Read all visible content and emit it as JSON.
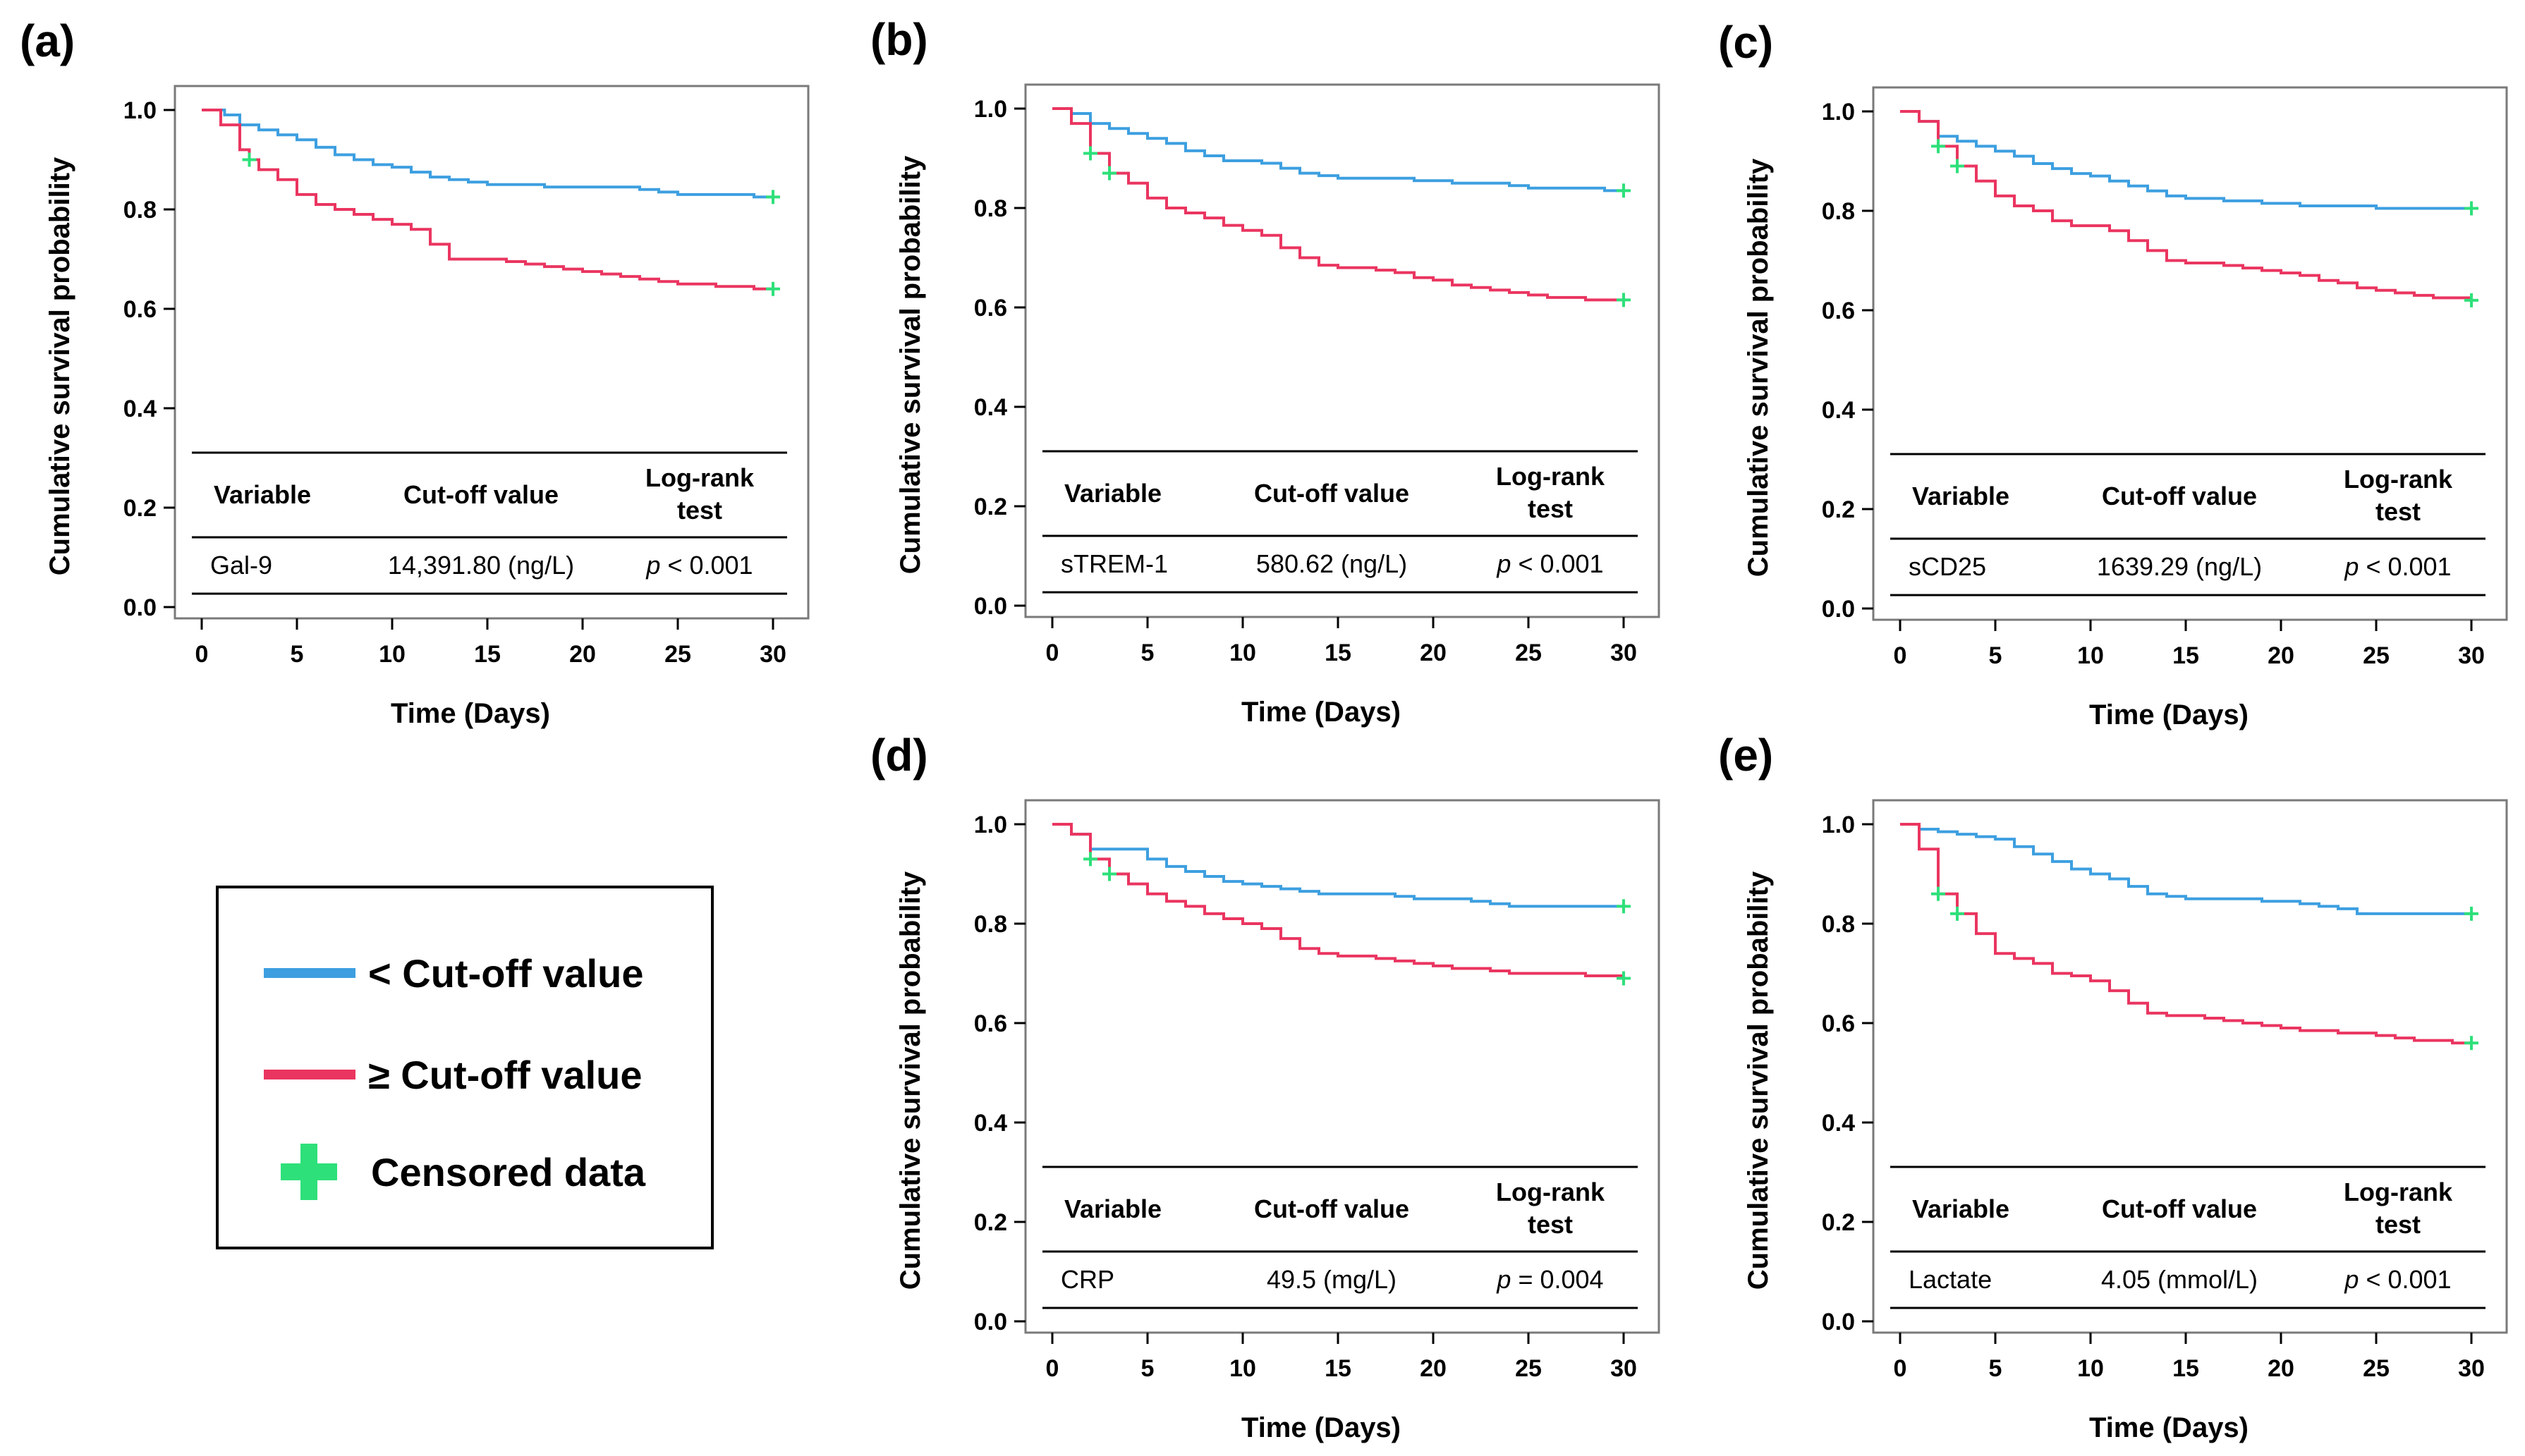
{
  "colors": {
    "below": "#3d9fe0",
    "above": "#ea3560",
    "censor": "#2ee07a",
    "frame": "#7a7a7a",
    "rule": "#000000"
  },
  "legend": {
    "below_label": "< Cut-off value",
    "above_label": "≥ Cut-off value",
    "censored_label": "Censored data"
  },
  "chart_data": [
    {
      "type": "line",
      "panel": "(a)",
      "xlabel": "Time (Days)",
      "ylabel": "Cumulative survival probability",
      "xlim": [
        0,
        30
      ],
      "ylim": [
        0,
        1
      ],
      "xticks": [
        "0",
        "5",
        "10",
        "15",
        "20",
        "25",
        "30"
      ],
      "yticks": [
        "0.0",
        "0.2",
        "0.4",
        "0.6",
        "0.8",
        "1.0"
      ],
      "table": {
        "headers": [
          "Variable",
          "Cut-off value",
          "Log-rank test"
        ],
        "variable": "Gal-9",
        "cutoff": "14,391.80 (ng/L)",
        "p_sym": "p",
        "p_rest": " < 0.001"
      },
      "series": [
        {
          "name": "< Cut-off value",
          "color": "#3d9fe0",
          "x": [
            0,
            1,
            1.2,
            2,
            3,
            4,
            5,
            6,
            7,
            8,
            9,
            10,
            11,
            12,
            13,
            14,
            15,
            16,
            17,
            18,
            19,
            20,
            21,
            22,
            23,
            24,
            25,
            26,
            27,
            28,
            29,
            30
          ],
          "y": [
            1.0,
            1.0,
            0.99,
            0.97,
            0.96,
            0.95,
            0.94,
            0.925,
            0.91,
            0.9,
            0.89,
            0.885,
            0.875,
            0.865,
            0.86,
            0.855,
            0.85,
            0.85,
            0.85,
            0.845,
            0.845,
            0.845,
            0.845,
            0.845,
            0.84,
            0.835,
            0.83,
            0.83,
            0.83,
            0.83,
            0.825,
            0.825
          ],
          "censored_x": [
            30
          ]
        },
        {
          "name": "≥ Cut-off value",
          "color": "#ea3560",
          "x": [
            0,
            1,
            2,
            2.5,
            3,
            4,
            5,
            6,
            7,
            8,
            9,
            10,
            11,
            12,
            13,
            14,
            15,
            16,
            17,
            18,
            19,
            20,
            21,
            22,
            23,
            24,
            25,
            26,
            27,
            28,
            29,
            30
          ],
          "y": [
            1.0,
            0.97,
            0.92,
            0.9,
            0.88,
            0.86,
            0.83,
            0.81,
            0.8,
            0.79,
            0.78,
            0.77,
            0.76,
            0.73,
            0.7,
            0.7,
            0.7,
            0.695,
            0.69,
            0.685,
            0.68,
            0.675,
            0.67,
            0.665,
            0.66,
            0.655,
            0.65,
            0.65,
            0.645,
            0.645,
            0.64,
            0.64
          ],
          "censored_x": [
            2.5,
            30
          ]
        }
      ]
    },
    {
      "type": "line",
      "panel": "(b)",
      "xlabel": "Time (Days)",
      "ylabel": "Cumulative survival probability",
      "xlim": [
        0,
        30
      ],
      "ylim": [
        0,
        1
      ],
      "xticks": [
        "0",
        "5",
        "10",
        "15",
        "20",
        "25",
        "30"
      ],
      "yticks": [
        "0.0",
        "0.2",
        "0.4",
        "0.6",
        "0.8",
        "1.0"
      ],
      "table": {
        "headers": [
          "Variable",
          "Cut-off value",
          "Log-rank test"
        ],
        "variable": "sTREM-1",
        "cutoff": "580.62 (ng/L)",
        "p_sym": "p",
        "p_rest": " < 0.001"
      },
      "series": [
        {
          "name": "< Cut-off value",
          "color": "#3d9fe0",
          "x": [
            0,
            1,
            2,
            3,
            4,
            5,
            6,
            7,
            8,
            9,
            10,
            11,
            12,
            13,
            14,
            15,
            16,
            17,
            18,
            19,
            20,
            21,
            22,
            23,
            24,
            25,
            26,
            27,
            28,
            29,
            30
          ],
          "y": [
            1.0,
            0.99,
            0.97,
            0.96,
            0.95,
            0.94,
            0.93,
            0.915,
            0.905,
            0.895,
            0.895,
            0.89,
            0.88,
            0.87,
            0.865,
            0.86,
            0.86,
            0.86,
            0.86,
            0.855,
            0.855,
            0.85,
            0.85,
            0.85,
            0.845,
            0.84,
            0.84,
            0.84,
            0.84,
            0.835,
            0.835
          ],
          "censored_x": [
            30
          ]
        },
        {
          "name": "≥ Cut-off value",
          "color": "#ea3560",
          "x": [
            0,
            1,
            2,
            3,
            4,
            5,
            6,
            7,
            8,
            9,
            10,
            11,
            12,
            13,
            14,
            15,
            16,
            17,
            18,
            19,
            20,
            21,
            22,
            23,
            24,
            25,
            26,
            27,
            28,
            29,
            30
          ],
          "y": [
            1.0,
            0.97,
            0.91,
            0.87,
            0.85,
            0.82,
            0.8,
            0.79,
            0.78,
            0.765,
            0.755,
            0.745,
            0.72,
            0.7,
            0.685,
            0.68,
            0.68,
            0.675,
            0.67,
            0.66,
            0.655,
            0.645,
            0.64,
            0.635,
            0.63,
            0.625,
            0.62,
            0.62,
            0.615,
            0.615,
            0.615
          ],
          "censored_x": [
            2,
            3,
            30
          ]
        }
      ]
    },
    {
      "type": "line",
      "panel": "(c)",
      "xlabel": "Time (Days)",
      "ylabel": "Cumulative survival probability",
      "xlim": [
        0,
        30
      ],
      "ylim": [
        0,
        1
      ],
      "xticks": [
        "0",
        "5",
        "10",
        "15",
        "20",
        "25",
        "30"
      ],
      "yticks": [
        "0.0",
        "0.2",
        "0.4",
        "0.6",
        "0.8",
        "1.0"
      ],
      "table": {
        "headers": [
          "Variable",
          "Cut-off value",
          "Log-rank test"
        ],
        "variable": "sCD25",
        "cutoff": "1639.29 (ng/L)",
        "p_sym": "p",
        "p_rest": " < 0.001"
      },
      "series": [
        {
          "name": "< Cut-off value",
          "color": "#3d9fe0",
          "x": [
            0,
            1,
            2,
            3,
            4,
            5,
            6,
            7,
            8,
            9,
            10,
            11,
            12,
            13,
            14,
            15,
            16,
            17,
            18,
            19,
            20,
            21,
            22,
            23,
            24,
            25,
            26,
            27,
            28,
            29,
            30
          ],
          "y": [
            1.0,
            0.98,
            0.95,
            0.94,
            0.93,
            0.92,
            0.91,
            0.895,
            0.885,
            0.875,
            0.87,
            0.86,
            0.85,
            0.84,
            0.83,
            0.825,
            0.825,
            0.82,
            0.82,
            0.815,
            0.815,
            0.81,
            0.81,
            0.81,
            0.81,
            0.805,
            0.805,
            0.805,
            0.805,
            0.805,
            0.805
          ],
          "censored_x": [
            30
          ]
        },
        {
          "name": "≥ Cut-off value",
          "color": "#ea3560",
          "x": [
            0,
            1,
            2,
            3,
            4,
            5,
            6,
            7,
            8,
            9,
            10,
            11,
            12,
            13,
            14,
            15,
            16,
            17,
            18,
            19,
            20,
            21,
            22,
            23,
            24,
            25,
            26,
            27,
            28,
            29,
            30
          ],
          "y": [
            1.0,
            0.98,
            0.93,
            0.89,
            0.86,
            0.83,
            0.81,
            0.8,
            0.78,
            0.77,
            0.77,
            0.76,
            0.74,
            0.72,
            0.7,
            0.695,
            0.695,
            0.69,
            0.685,
            0.68,
            0.675,
            0.67,
            0.66,
            0.655,
            0.645,
            0.64,
            0.635,
            0.63,
            0.625,
            0.625,
            0.62
          ],
          "censored_x": [
            2,
            3,
            30
          ]
        }
      ]
    },
    {
      "type": "line",
      "panel": "(d)",
      "xlabel": "Time (Days)",
      "ylabel": "Cumulative survival probability",
      "xlim": [
        0,
        30
      ],
      "ylim": [
        0,
        1
      ],
      "xticks": [
        "0",
        "5",
        "10",
        "15",
        "20",
        "25",
        "30"
      ],
      "yticks": [
        "0.0",
        "0.2",
        "0.4",
        "0.6",
        "0.8",
        "1.0"
      ],
      "table": {
        "headers": [
          "Variable",
          "Cut-off value",
          "Log-rank test"
        ],
        "variable": "CRP",
        "cutoff": "49.5 (mg/L)",
        "p_sym": "p",
        "p_rest": " = 0.004"
      },
      "series": [
        {
          "name": "< Cut-off value",
          "color": "#3d9fe0",
          "x": [
            0,
            1,
            2,
            3,
            4,
            5,
            6,
            7,
            8,
            9,
            10,
            11,
            12,
            13,
            14,
            15,
            16,
            17,
            18,
            19,
            20,
            21,
            22,
            23,
            24,
            25,
            26,
            27,
            28,
            29,
            30
          ],
          "y": [
            1.0,
            0.98,
            0.95,
            0.95,
            0.95,
            0.93,
            0.915,
            0.905,
            0.895,
            0.885,
            0.88,
            0.875,
            0.87,
            0.865,
            0.86,
            0.86,
            0.86,
            0.86,
            0.855,
            0.85,
            0.85,
            0.85,
            0.845,
            0.84,
            0.835,
            0.835,
            0.835,
            0.835,
            0.835,
            0.835,
            0.835
          ],
          "censored_x": [
            30
          ]
        },
        {
          "name": "≥ Cut-off value",
          "color": "#ea3560",
          "x": [
            0,
            1,
            2,
            3,
            4,
            5,
            6,
            7,
            8,
            9,
            10,
            11,
            12,
            13,
            14,
            15,
            16,
            17,
            18,
            19,
            20,
            21,
            22,
            23,
            24,
            25,
            26,
            27,
            28,
            29,
            30
          ],
          "y": [
            1.0,
            0.98,
            0.93,
            0.9,
            0.88,
            0.86,
            0.845,
            0.835,
            0.82,
            0.81,
            0.8,
            0.79,
            0.77,
            0.75,
            0.74,
            0.735,
            0.735,
            0.73,
            0.725,
            0.72,
            0.715,
            0.71,
            0.71,
            0.705,
            0.7,
            0.7,
            0.7,
            0.7,
            0.695,
            0.695,
            0.69
          ],
          "censored_x": [
            2,
            3,
            30
          ]
        }
      ]
    },
    {
      "type": "line",
      "panel": "(e)",
      "xlabel": "Time (Days)",
      "ylabel": "Cumulative survival probability",
      "xlim": [
        0,
        30
      ],
      "ylim": [
        0,
        1
      ],
      "xticks": [
        "0",
        "5",
        "10",
        "15",
        "20",
        "25",
        "30"
      ],
      "yticks": [
        "0.0",
        "0.2",
        "0.4",
        "0.6",
        "0.8",
        "1.0"
      ],
      "table": {
        "headers": [
          "Variable",
          "Cut-off value",
          "Log-rank test"
        ],
        "variable": "Lactate",
        "cutoff": "4.05 (mmol/L)",
        "p_sym": "p",
        "p_rest": " < 0.001"
      },
      "series": [
        {
          "name": "< Cut-off value",
          "color": "#3d9fe0",
          "x": [
            0,
            1,
            2,
            3,
            4,
            5,
            6,
            7,
            8,
            9,
            10,
            11,
            12,
            13,
            14,
            15,
            16,
            17,
            18,
            19,
            20,
            21,
            22,
            23,
            24,
            25,
            26,
            27,
            28,
            29,
            30
          ],
          "y": [
            1.0,
            0.99,
            0.985,
            0.98,
            0.975,
            0.97,
            0.955,
            0.94,
            0.925,
            0.91,
            0.9,
            0.89,
            0.875,
            0.86,
            0.855,
            0.85,
            0.85,
            0.85,
            0.85,
            0.845,
            0.845,
            0.84,
            0.835,
            0.83,
            0.82,
            0.82,
            0.82,
            0.82,
            0.82,
            0.82,
            0.82
          ],
          "censored_x": [
            30
          ]
        },
        {
          "name": "≥ Cut-off value",
          "color": "#ea3560",
          "x": [
            0,
            1,
            2,
            3,
            4,
            5,
            6,
            7,
            8,
            9,
            10,
            11,
            12,
            13,
            14,
            15,
            16,
            17,
            18,
            19,
            20,
            21,
            22,
            23,
            24,
            25,
            26,
            27,
            28,
            29,
            30
          ],
          "y": [
            1.0,
            0.95,
            0.86,
            0.82,
            0.78,
            0.74,
            0.73,
            0.72,
            0.7,
            0.695,
            0.685,
            0.665,
            0.64,
            0.62,
            0.615,
            0.615,
            0.61,
            0.605,
            0.6,
            0.595,
            0.59,
            0.585,
            0.585,
            0.58,
            0.58,
            0.575,
            0.57,
            0.565,
            0.565,
            0.56,
            0.56
          ],
          "censored_x": [
            2,
            3,
            30
          ]
        }
      ]
    }
  ]
}
